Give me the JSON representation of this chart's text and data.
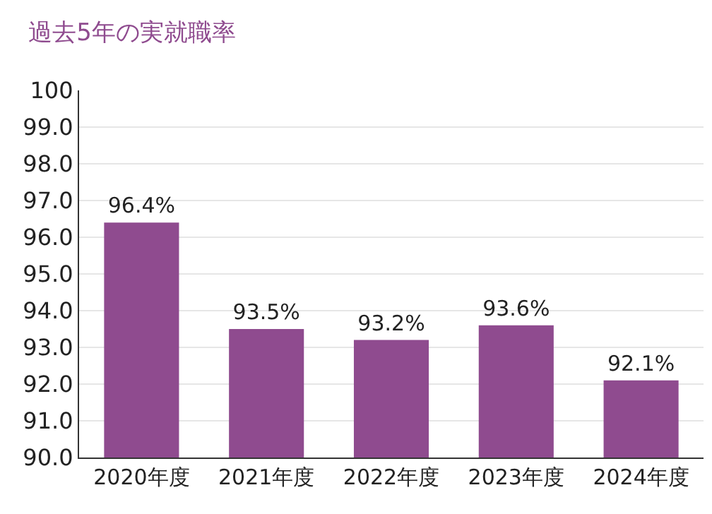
{
  "chart_data": {
    "type": "bar",
    "title": "過去5年の実就職率",
    "categories": [
      "2020年度",
      "2021年度",
      "2022年度",
      "2023年度",
      "2024年度"
    ],
    "values": [
      96.4,
      93.5,
      93.2,
      93.6,
      92.1
    ],
    "value_labels": [
      "96.4%",
      "93.5%",
      "93.2%",
      "93.6%",
      "92.1%"
    ],
    "color": "#8f4b8f",
    "ylim": [
      90,
      100
    ],
    "yticks": [
      {
        "value": 90,
        "label": "90.0"
      },
      {
        "value": 91,
        "label": "91.0"
      },
      {
        "value": 92,
        "label": "92.0"
      },
      {
        "value": 93,
        "label": "93.0"
      },
      {
        "value": 94,
        "label": "94.0"
      },
      {
        "value": 95,
        "label": "95.0"
      },
      {
        "value": 96,
        "label": "96.0"
      },
      {
        "value": 97,
        "label": "97.0"
      },
      {
        "value": 98,
        "label": "98.0"
      },
      {
        "value": 99,
        "label": "99.0"
      },
      100
    ],
    "grid": "y"
  }
}
